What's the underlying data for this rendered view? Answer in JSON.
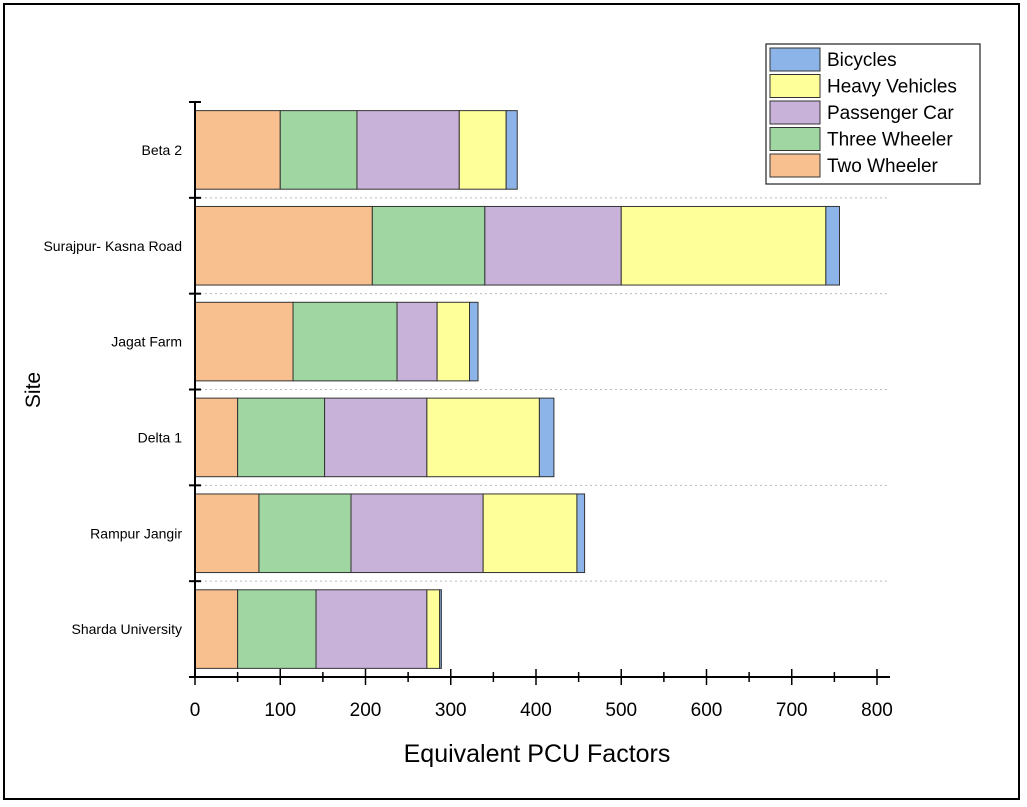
{
  "chart_data": {
    "type": "bar",
    "orientation": "horizontal",
    "stacked": true,
    "xlabel": "Equivalent PCU Factors",
    "ylabel": "Site",
    "xlim": [
      0,
      800
    ],
    "xticks": [
      "0",
      "100",
      "200",
      "300",
      "400",
      "500",
      "600",
      "700",
      "800"
    ],
    "categories": [
      "Sharda University",
      "Rampur Jangir",
      "Delta 1",
      "Jagat Farm",
      "Surajpur- Kasna Road",
      "Beta 2"
    ],
    "series": [
      {
        "name": "Two Wheeler",
        "color": "#f9c08f",
        "values": [
          50,
          75,
          50,
          115,
          208,
          100
        ]
      },
      {
        "name": "Three Wheeler",
        "color": "#9fd6a1",
        "values": [
          92,
          108,
          102,
          122,
          132,
          90
        ]
      },
      {
        "name": "Passenger Car",
        "color": "#c9b2d9",
        "values": [
          130,
          155,
          120,
          47,
          160,
          120
        ]
      },
      {
        "name": "Heavy Vehicles",
        "color": "#ffff99",
        "values": [
          15,
          110,
          132,
          38,
          240,
          55
        ]
      },
      {
        "name": "Bicycles",
        "color": "#8db4e8",
        "values": [
          2,
          9,
          17,
          10,
          16,
          13
        ]
      }
    ],
    "legend_order": [
      "Bicycles",
      "Heavy Vehicles",
      "Passenger Car",
      "Three Wheeler",
      "Two Wheeler"
    ],
    "legend_position": "top-right",
    "grid": "horizontal dotted separators"
  }
}
